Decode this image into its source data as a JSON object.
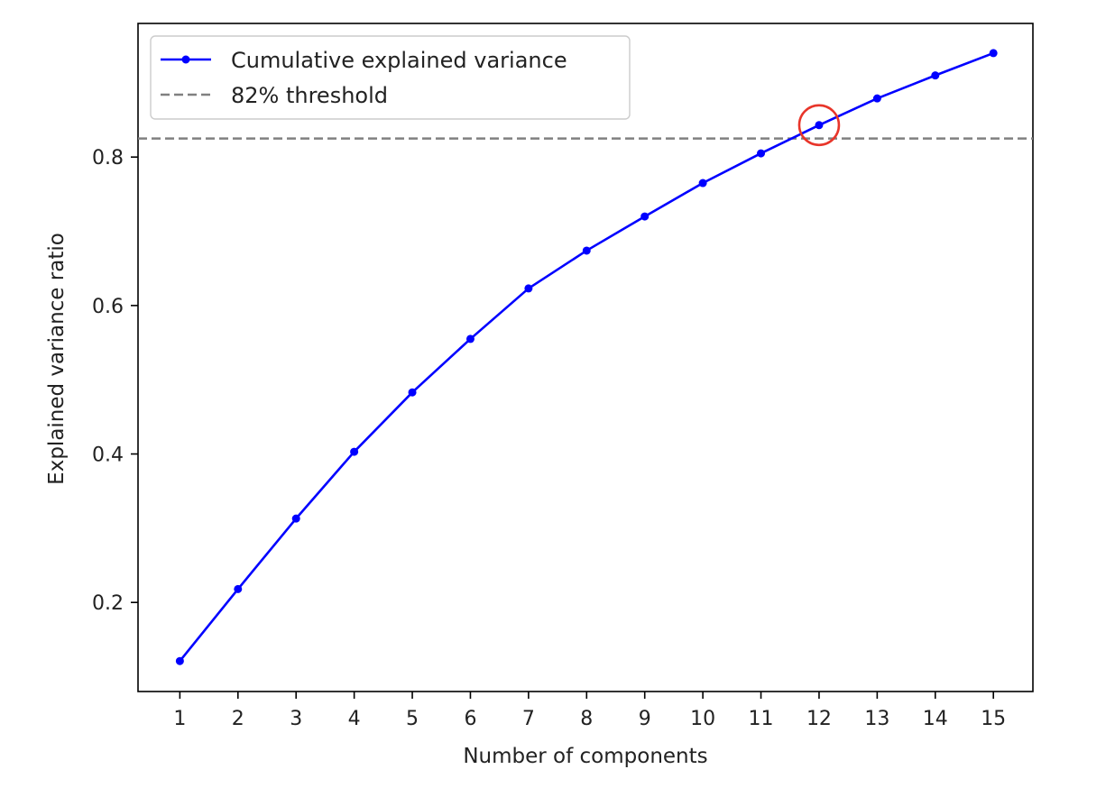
{
  "chart_data": {
    "type": "line",
    "title": "",
    "xlabel": "Number of components",
    "ylabel": "Explained variance ratio",
    "xlim": [
      0.28,
      15.68
    ],
    "ylim": [
      0.08,
      0.98
    ],
    "x_ticks": [
      1,
      2,
      3,
      4,
      5,
      6,
      7,
      8,
      9,
      10,
      11,
      12,
      13,
      14,
      15
    ],
    "y_ticks": [
      0.2,
      0.4,
      0.6,
      0.8
    ],
    "grid": false,
    "legend_position": "top-left",
    "series": [
      {
        "name": "Cumulative explained variance",
        "color": "#0000ff",
        "marker": "dot",
        "x": [
          1,
          2,
          3,
          4,
          5,
          6,
          7,
          8,
          9,
          10,
          11,
          12,
          13,
          14,
          15
        ],
        "y": [
          0.121,
          0.218,
          0.313,
          0.403,
          0.483,
          0.555,
          0.623,
          0.674,
          0.72,
          0.765,
          0.805,
          0.843,
          0.879,
          0.91,
          0.94
        ]
      }
    ],
    "threshold": {
      "name": "82% threshold",
      "y": 0.825,
      "color": "#808080",
      "style": "dashed"
    },
    "highlight": {
      "x": 12,
      "y": 0.843,
      "color": "#e8352a",
      "shape": "circle"
    }
  }
}
